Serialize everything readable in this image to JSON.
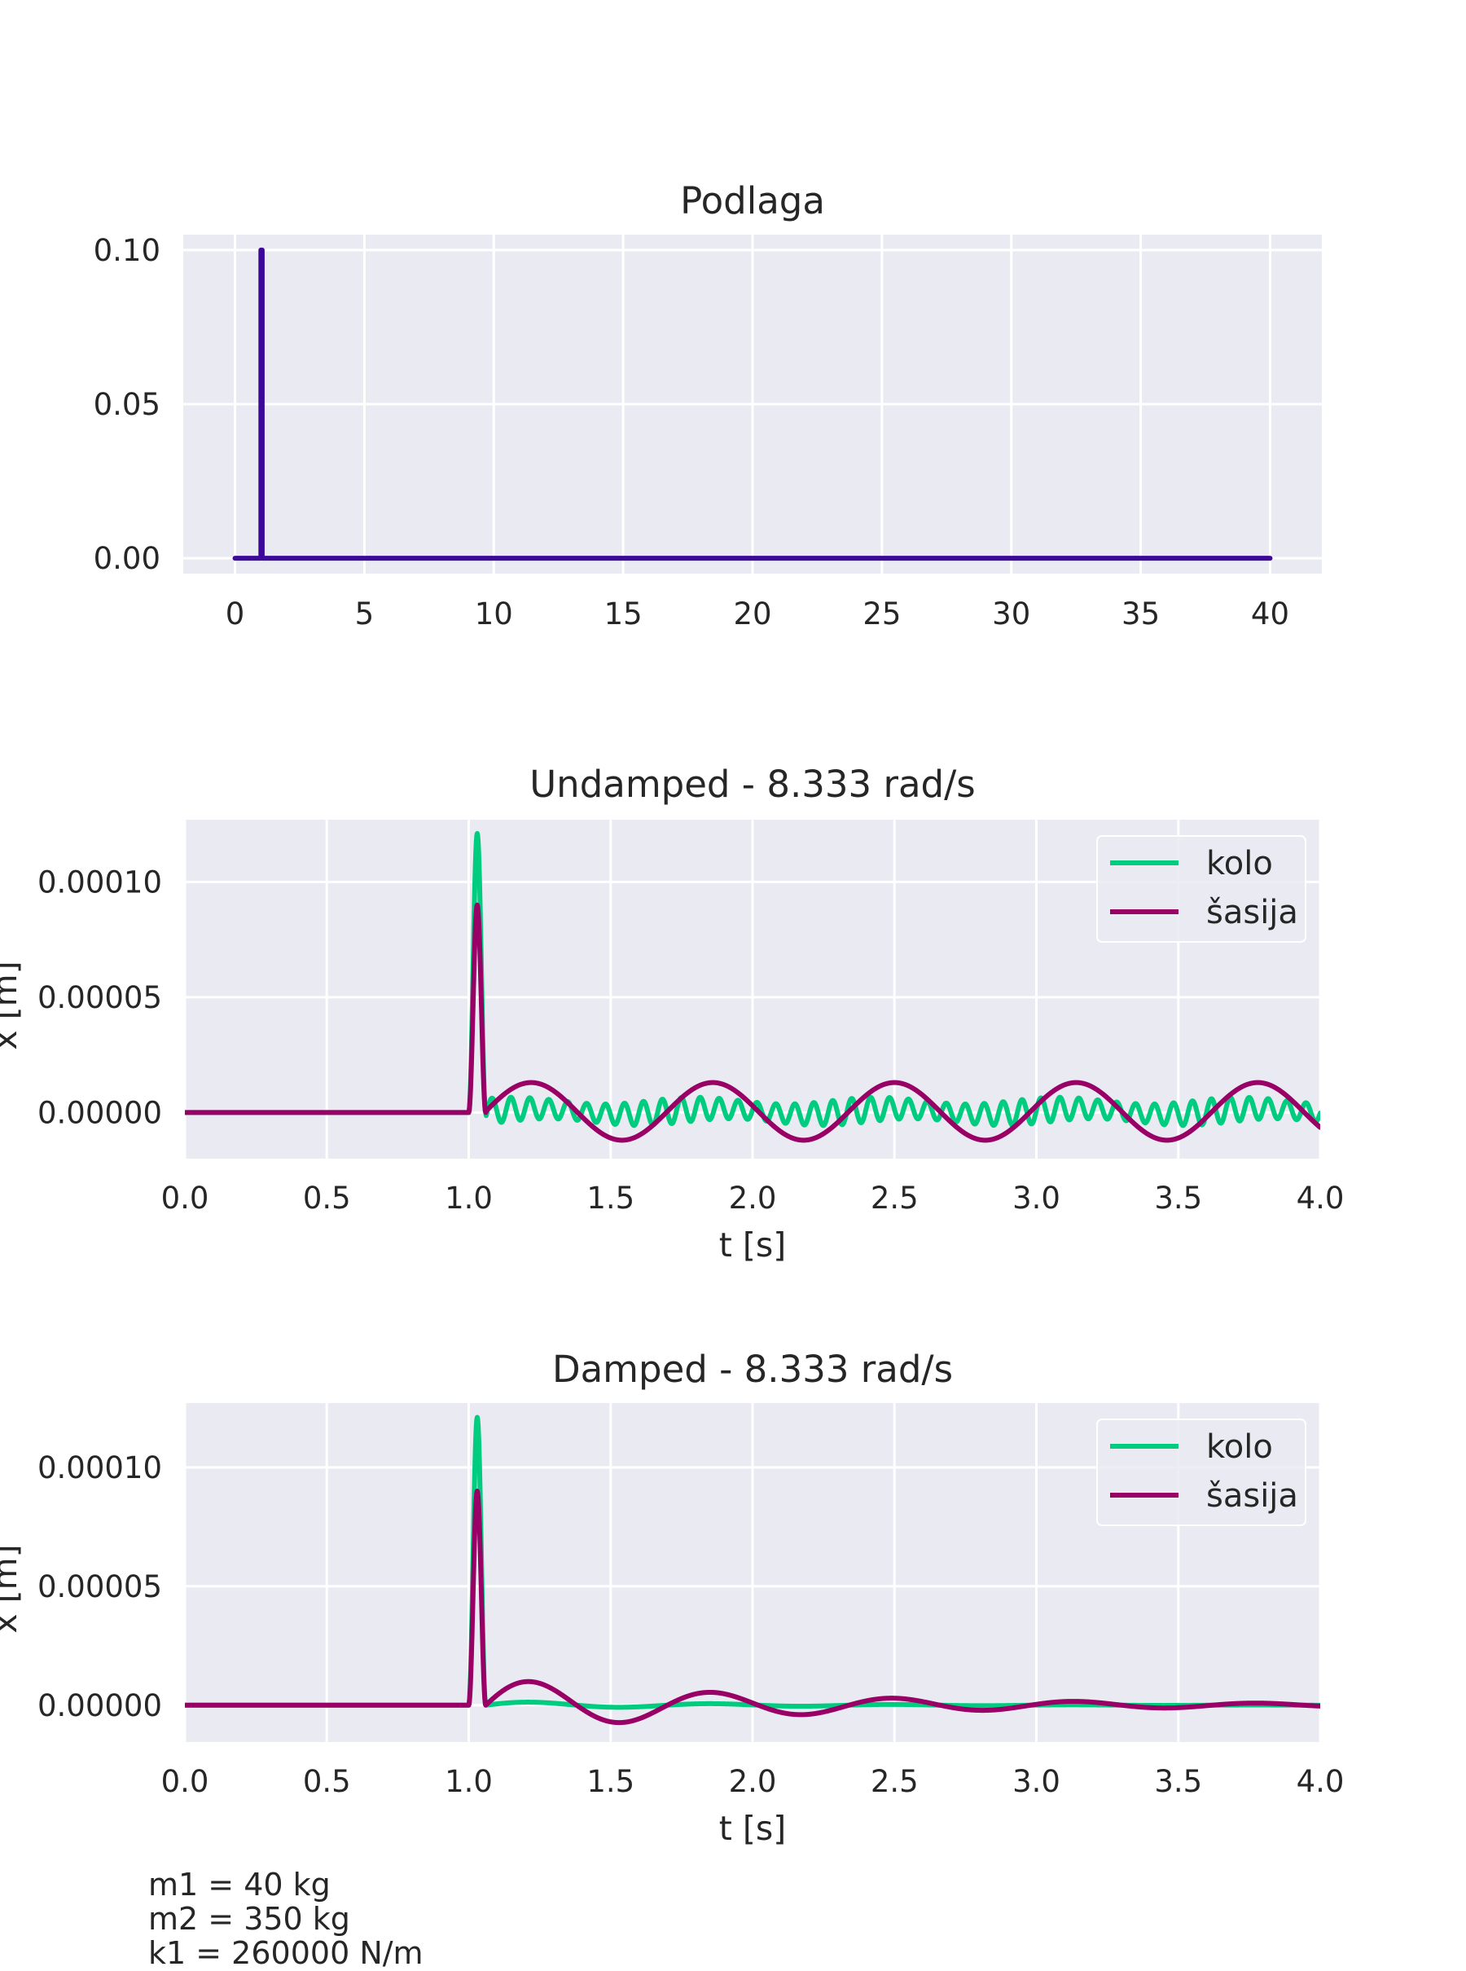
{
  "chart_data": [
    {
      "type": "line",
      "title": "Podlaga",
      "xlabel": "",
      "ylabel": "",
      "xlim": [
        -2,
        42
      ],
      "ylim": [
        -0.005,
        0.105
      ],
      "xticks": [
        0,
        5,
        10,
        15,
        20,
        25,
        30,
        35,
        40
      ],
      "xtick_labels": [
        "0",
        "5",
        "10",
        "15",
        "20",
        "25",
        "30",
        "35",
        "40"
      ],
      "yticks": [
        0,
        0.05,
        0.1
      ],
      "ytick_labels": [
        "0.00",
        "0.05",
        "0.10"
      ],
      "grid": true,
      "series": [
        {
          "color": "#3d0899",
          "x": [
            0,
            1.0,
            1.0,
            1.05,
            1.05,
            40
          ],
          "y": [
            0,
            0,
            0.1,
            0.1,
            0,
            0
          ]
        }
      ]
    },
    {
      "type": "line",
      "title": "Undamped - 8.333 rad/s",
      "xlabel": "t [s]",
      "ylabel": "x [m]",
      "xlim": [
        0,
        4
      ],
      "ylim": [
        -2e-05,
        0.000127
      ],
      "xticks": [
        0,
        0.5,
        1.0,
        1.5,
        2.0,
        2.5,
        3.0,
        3.5,
        4.0
      ],
      "xtick_labels": [
        "0.0",
        "0.5",
        "1.0",
        "1.5",
        "2.0",
        "2.5",
        "3.0",
        "3.5",
        "4.0"
      ],
      "yticks": [
        0,
        5e-05,
        0.0001
      ],
      "ytick_labels": [
        "0.00000",
        "0.00005",
        "0.00010"
      ],
      "grid": true,
      "legend": "top-right",
      "series": [
        {
          "name": "kolo",
          "color": "#00cc80",
          "pulse_start": 1.0,
          "pulse_end": 1.06,
          "peak": 0.000121,
          "wheel_amp": 5.5e-06,
          "wheel_period": 0.0667,
          "body_amp": 1.2e-06,
          "body_period": 0.64,
          "decay": 0
        },
        {
          "name": "šasija",
          "color": "#990066",
          "pulse_start": 1.0,
          "pulse_end": 1.06,
          "peak": 9e-05,
          "body_amp": 1.25e-05,
          "body_period": 0.64,
          "body_offset": 5e-07,
          "decay": 0
        }
      ]
    },
    {
      "type": "line",
      "title": "Damped - 8.333 rad/s",
      "xlabel": "t [s]",
      "ylabel": "x [m]",
      "xlim": [
        0,
        4
      ],
      "ylim": [
        -1.55e-05,
        0.000127
      ],
      "xticks": [
        0,
        0.5,
        1.0,
        1.5,
        2.0,
        2.5,
        3.0,
        3.5,
        4.0
      ],
      "xtick_labels": [
        "0.0",
        "0.5",
        "1.0",
        "1.5",
        "2.0",
        "2.5",
        "3.0",
        "3.5",
        "4.0"
      ],
      "yticks": [
        0,
        5e-05,
        0.0001
      ],
      "ytick_labels": [
        "0.00000",
        "0.00005",
        "0.00010"
      ],
      "grid": true,
      "legend": "top-right",
      "series": [
        {
          "name": "kolo",
          "color": "#00cc80",
          "pulse_start": 1.0,
          "pulse_end": 1.06,
          "peak": 0.000121,
          "body_amp": 1.5e-06,
          "body_period": 0.64,
          "decay": 1.1
        },
        {
          "name": "šasija",
          "color": "#990066",
          "pulse_start": 1.0,
          "pulse_end": 1.06,
          "peak": 9e-05,
          "body_amp": 1.15e-05,
          "body_period": 0.64,
          "decay": 0.95
        }
      ]
    }
  ],
  "parameters": [
    "m1 = 40 kg",
    "m2 = 350 kg",
    "k1 = 260000 N/m"
  ]
}
